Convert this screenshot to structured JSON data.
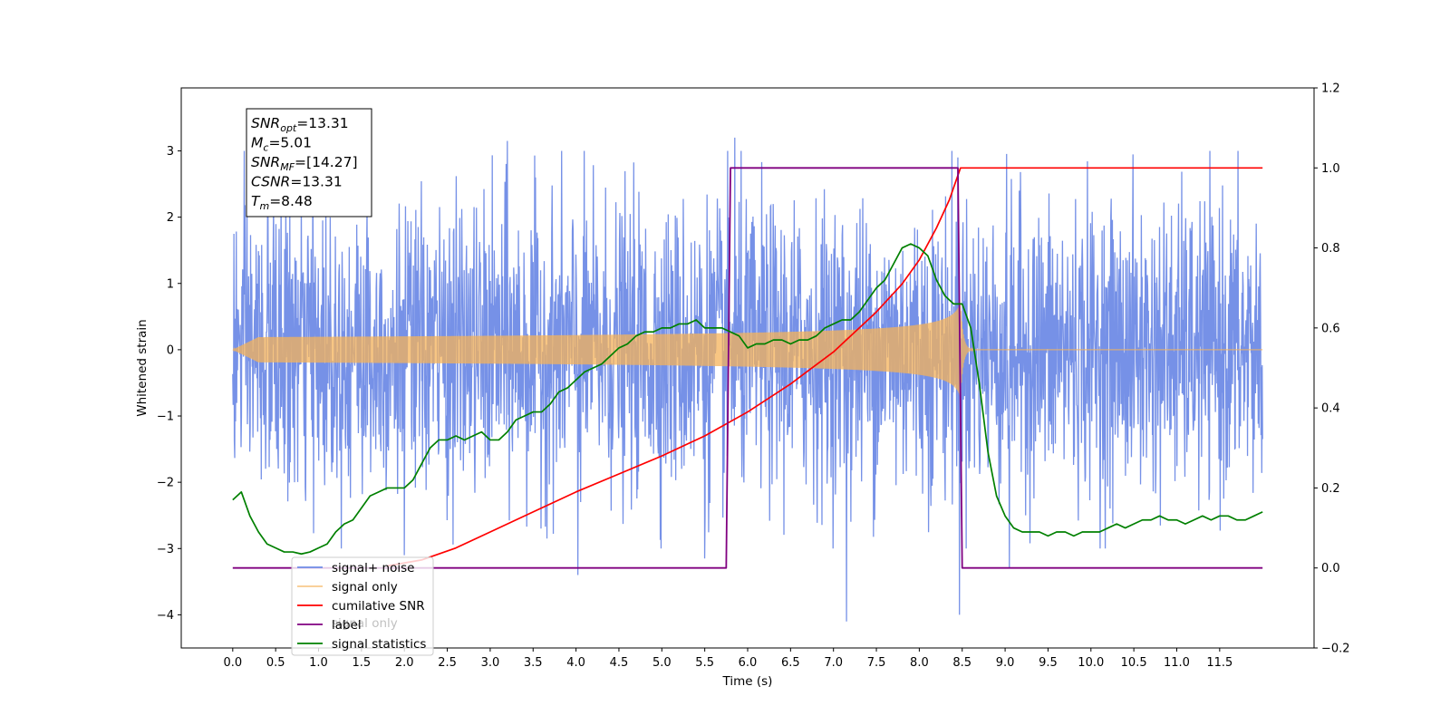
{
  "chart_data": {
    "type": "line",
    "xlabel": "Time (s)",
    "ylabel": "Whitened strain",
    "y2label": "",
    "xlim": [
      -0.6,
      12.6
    ],
    "ylim": [
      -4.5,
      3.95
    ],
    "y2lim": [
      -0.2,
      1.2
    ],
    "x_ticks": [
      0.0,
      0.5,
      1.0,
      1.5,
      2.0,
      2.5,
      3.0,
      3.5,
      4.0,
      4.5,
      5.0,
      5.5,
      6.0,
      6.5,
      7.0,
      7.5,
      8.0,
      8.5,
      9.0,
      9.5,
      10.0,
      10.5,
      11.0,
      11.5
    ],
    "x_tick_labels": [
      "0.0",
      "0.5",
      "1.0",
      "1.5",
      "2.0",
      "2.5",
      "3.0",
      "3.5",
      "4.0",
      "4.5",
      "5.0",
      "5.5",
      "6.0",
      "6.5",
      "7.0",
      "7.5",
      "8.0",
      "8.5",
      "9.0",
      "9.5",
      "10.0",
      "10.5",
      "11.0",
      "11.5"
    ],
    "y_ticks": [
      -4,
      -3,
      -2,
      -1,
      0,
      1,
      2,
      3
    ],
    "y_tick_labels": [
      "−4",
      "−3",
      "−2",
      "−1",
      "0",
      "1",
      "2",
      "3"
    ],
    "y2_ticks": [
      -0.2,
      0.0,
      0.2,
      0.4,
      0.6,
      0.8,
      1.0,
      1.2
    ],
    "y2_tick_labels": [
      "−0.2",
      "0.0",
      "0.2",
      "0.4",
      "0.6",
      "0.8",
      "1.0",
      "1.2"
    ],
    "grid": false,
    "legend_position": "lower-left",
    "noise_x_range": [
      0.0,
      12.0
    ],
    "noise_amplitude_typical": 1.2,
    "noise_extremes": [
      {
        "x": 5.85,
        "y": 3.2
      },
      {
        "x": 3.2,
        "y": 3.15
      },
      {
        "x": 8.45,
        "y": 2.9
      },
      {
        "x": 7.15,
        "y": -4.1
      },
      {
        "x": 8.47,
        "y": -4.0
      },
      {
        "x": 4.02,
        "y": -3.4
      },
      {
        "x": 5.5,
        "y": -3.15
      },
      {
        "x": 2.0,
        "y": -3.1
      },
      {
        "x": 9.05,
        "y": -3.3
      }
    ],
    "chirp": {
      "start": 0.0,
      "merger": 8.48,
      "amplitude_at_merger": 0.72
    },
    "series": [
      {
        "name": "signal+ noise",
        "color": "#6f8be6",
        "axis": "left",
        "kind": "noise"
      },
      {
        "name": "signal only",
        "color": "#f5b35a",
        "axis": "left",
        "kind": "chirp"
      },
      {
        "name": "cumilative SNR",
        "color": "#ff0000",
        "axis": "right",
        "x": [
          1.8,
          2.2,
          2.6,
          3.0,
          3.5,
          4.0,
          4.5,
          5.0,
          5.5,
          6.0,
          6.5,
          7.0,
          7.5,
          7.8,
          8.0,
          8.2,
          8.35,
          8.48,
          8.5,
          12.0
        ],
        "y": [
          0.005,
          0.02,
          0.05,
          0.09,
          0.14,
          0.19,
          0.235,
          0.28,
          0.33,
          0.39,
          0.46,
          0.54,
          0.64,
          0.71,
          0.77,
          0.85,
          0.92,
          1.0,
          1.0,
          1.0
        ]
      },
      {
        "name": "label",
        "color": "#800080",
        "axis": "right",
        "x": [
          0.0,
          5.75,
          5.8,
          8.45,
          8.5,
          12.0
        ],
        "y": [
          0.0,
          0.0,
          1.0,
          1.0,
          0.0,
          0.0
        ]
      },
      {
        "name": "signal statistics",
        "color": "#008000",
        "axis": "right",
        "x": [
          0.0,
          0.1,
          0.2,
          0.3,
          0.4,
          0.5,
          0.6,
          0.7,
          0.8,
          0.9,
          1.0,
          1.1,
          1.2,
          1.3,
          1.4,
          1.5,
          1.6,
          1.7,
          1.8,
          1.9,
          2.0,
          2.1,
          2.2,
          2.3,
          2.4,
          2.5,
          2.6,
          2.7,
          2.8,
          2.9,
          3.0,
          3.1,
          3.2,
          3.3,
          3.4,
          3.5,
          3.6,
          3.7,
          3.8,
          3.9,
          4.0,
          4.1,
          4.2,
          4.3,
          4.4,
          4.5,
          4.6,
          4.7,
          4.8,
          4.9,
          5.0,
          5.1,
          5.2,
          5.3,
          5.4,
          5.5,
          5.6,
          5.7,
          5.8,
          5.9,
          6.0,
          6.1,
          6.2,
          6.3,
          6.4,
          6.5,
          6.6,
          6.7,
          6.8,
          6.9,
          7.0,
          7.1,
          7.2,
          7.3,
          7.4,
          7.5,
          7.6,
          7.7,
          7.8,
          7.9,
          8.0,
          8.1,
          8.2,
          8.3,
          8.4,
          8.5,
          8.6,
          8.7,
          8.8,
          8.9,
          9.0,
          9.1,
          9.2,
          9.3,
          9.4,
          9.5,
          9.6,
          9.7,
          9.8,
          9.9,
          10.0,
          10.1,
          10.2,
          10.3,
          10.4,
          10.5,
          10.6,
          10.7,
          10.8,
          10.9,
          11.0,
          11.1,
          11.2,
          11.3,
          11.4,
          11.5,
          11.6,
          11.7,
          11.8,
          11.9,
          12.0
        ],
        "y": [
          0.17,
          0.19,
          0.13,
          0.09,
          0.06,
          0.05,
          0.04,
          0.04,
          0.035,
          0.04,
          0.05,
          0.06,
          0.09,
          0.11,
          0.12,
          0.15,
          0.18,
          0.19,
          0.2,
          0.2,
          0.2,
          0.22,
          0.26,
          0.3,
          0.32,
          0.32,
          0.33,
          0.32,
          0.33,
          0.34,
          0.32,
          0.32,
          0.34,
          0.37,
          0.38,
          0.39,
          0.39,
          0.41,
          0.44,
          0.45,
          0.47,
          0.49,
          0.5,
          0.51,
          0.53,
          0.55,
          0.56,
          0.58,
          0.59,
          0.59,
          0.6,
          0.6,
          0.61,
          0.61,
          0.62,
          0.6,
          0.6,
          0.6,
          0.59,
          0.58,
          0.55,
          0.56,
          0.56,
          0.57,
          0.57,
          0.56,
          0.57,
          0.57,
          0.58,
          0.6,
          0.61,
          0.62,
          0.62,
          0.64,
          0.67,
          0.7,
          0.72,
          0.76,
          0.8,
          0.81,
          0.8,
          0.78,
          0.72,
          0.68,
          0.66,
          0.66,
          0.6,
          0.46,
          0.29,
          0.18,
          0.13,
          0.1,
          0.09,
          0.09,
          0.09,
          0.08,
          0.09,
          0.09,
          0.08,
          0.09,
          0.09,
          0.09,
          0.1,
          0.11,
          0.1,
          0.11,
          0.12,
          0.12,
          0.13,
          0.12,
          0.12,
          0.11,
          0.12,
          0.13,
          0.12,
          0.13,
          0.13,
          0.12,
          0.12,
          0.13,
          0.14
        ]
      }
    ],
    "legend": [
      "signal+ noise",
      "signal only",
      "cumilative SNR",
      "label",
      "signal statistics"
    ],
    "legend_ghost": "signal only",
    "annotation": {
      "lines": [
        {
          "sym": "SNR",
          "sub": "opt",
          "rest": "=13.31"
        },
        {
          "sym": "M",
          "sub": "c",
          "rest": "=5.01"
        },
        {
          "sym": "SNR",
          "sub": "MF",
          "rest": "=[14.27]"
        },
        {
          "sym": "CSNR",
          "sub": "",
          "rest": "=13.31"
        },
        {
          "sym": "T",
          "sub": "m",
          "rest": "=8.48"
        }
      ]
    }
  }
}
